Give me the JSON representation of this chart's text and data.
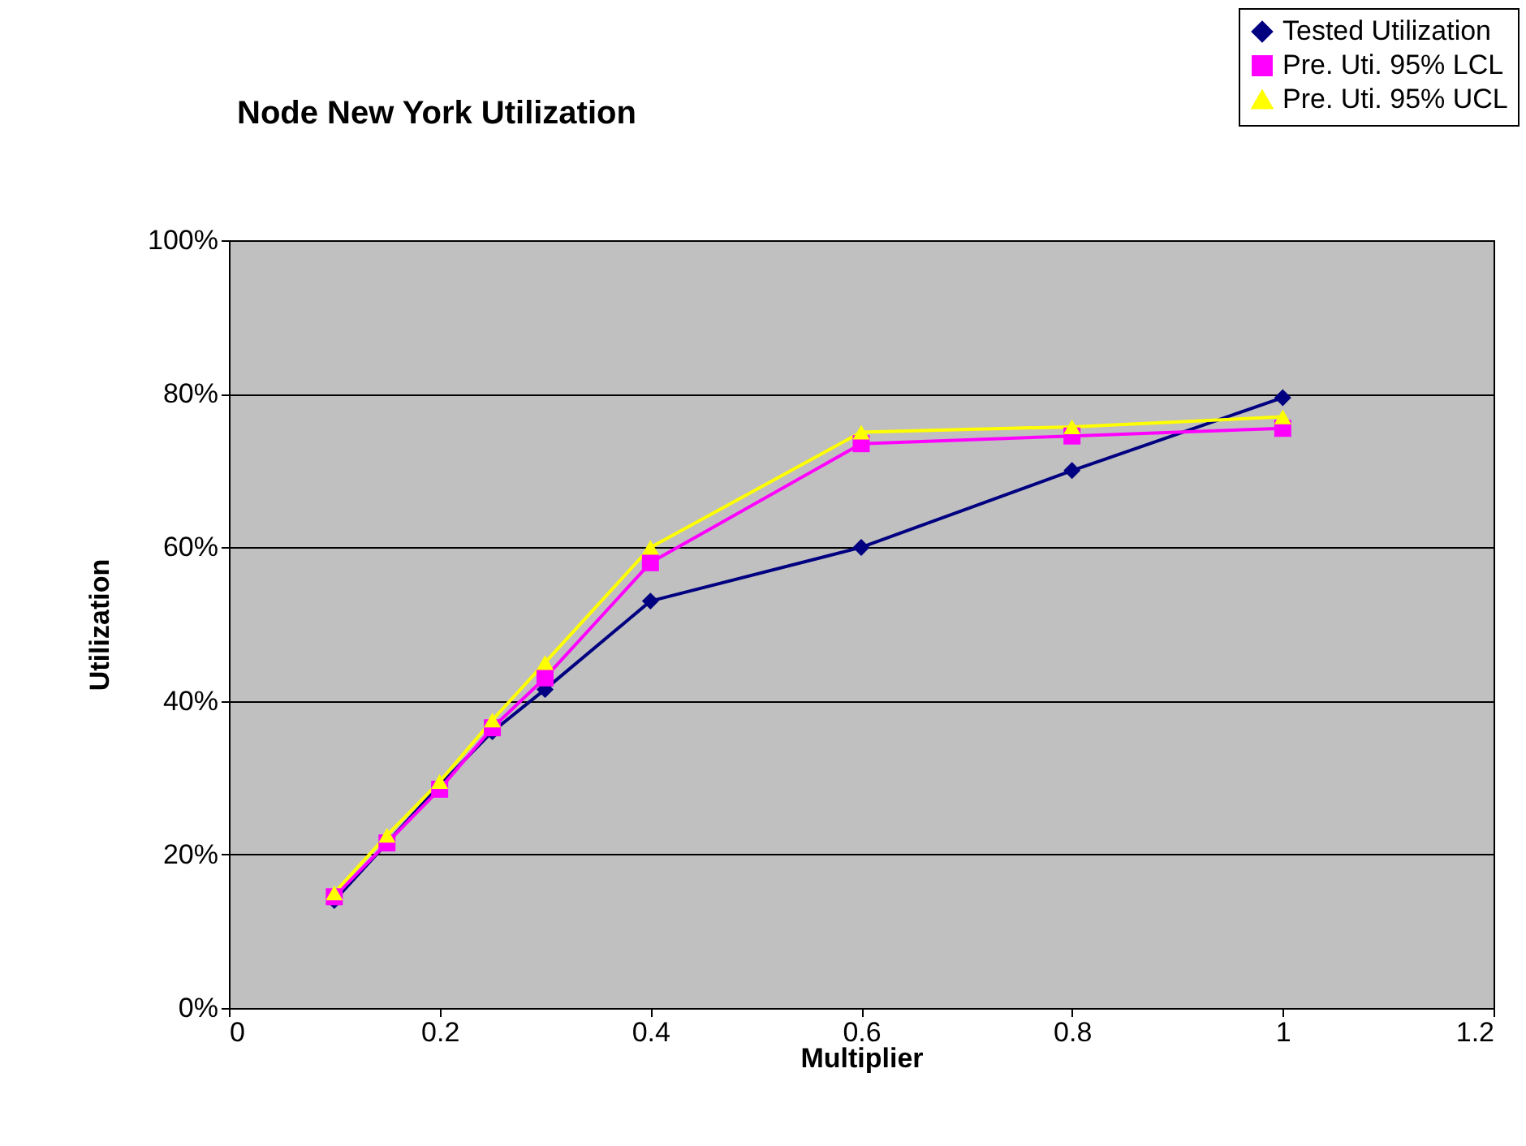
{
  "chart_data": {
    "type": "line",
    "title": "Node New York Utilization",
    "xlabel": "Multiplier",
    "ylabel": "Utilization",
    "x": [
      0.1,
      0.15,
      0.2,
      0.25,
      0.3,
      0.4,
      0.6,
      0.8,
      1
    ],
    "series": [
      {
        "name": "Tested Utilization",
        "color": "#000080",
        "marker": "diamond",
        "values": [
          0.14,
          0.215,
          0.29,
          0.36,
          0.415,
          0.53,
          0.6,
          0.7,
          0.795
        ]
      },
      {
        "name": "Pre. Uti. 95% LCL",
        "color": "#ff00ff",
        "marker": "square",
        "values": [
          0.145,
          0.215,
          0.285,
          0.365,
          0.43,
          0.58,
          0.735,
          0.745,
          0.755
        ]
      },
      {
        "name": "Pre. Uti. 95% UCL",
        "color": "#ffff00",
        "marker": "triangle",
        "values": [
          0.15,
          0.225,
          0.295,
          0.375,
          0.45,
          0.6,
          0.75,
          0.757,
          0.77
        ]
      }
    ],
    "xlim": [
      0,
      1.2
    ],
    "xticks": [
      0,
      0.2,
      0.4,
      0.6,
      0.8,
      1,
      1.2
    ],
    "ylim": [
      0,
      1
    ],
    "yticks": [
      {
        "value": 0,
        "label": "0%"
      },
      {
        "value": 0.2,
        "label": "20%"
      },
      {
        "value": 0.4,
        "label": "40%"
      },
      {
        "value": 0.6,
        "label": "60%"
      },
      {
        "value": 0.8,
        "label": "80%"
      },
      {
        "value": 1,
        "label": "100%"
      }
    ],
    "grid": "y",
    "legend": "top right",
    "line_style": "solid"
  }
}
